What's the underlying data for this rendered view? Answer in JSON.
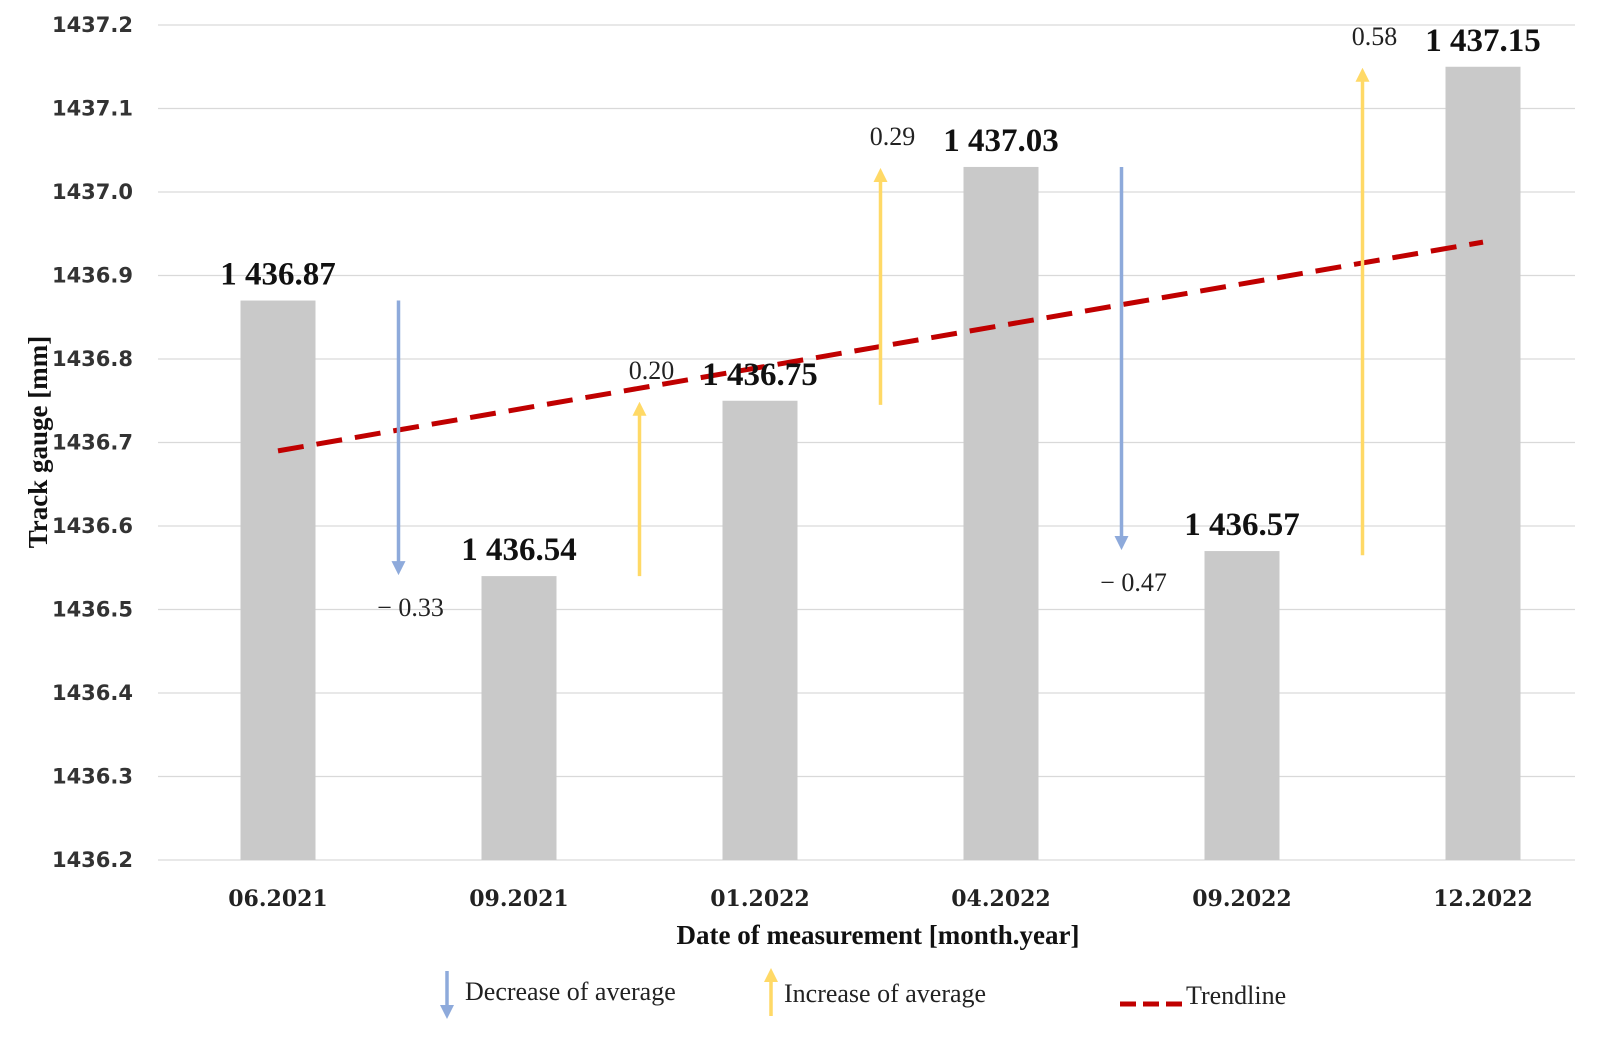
{
  "chart_data": {
    "type": "bar",
    "title": "",
    "xlabel": "Date of measurement [month.year]",
    "ylabel": "Track gauge [mm]",
    "ylim": [
      1436.2,
      1437.2
    ],
    "grid": true,
    "yticks": [
      "1437.2",
      "1437.1",
      "1437.0",
      "1436.9",
      "1436.8",
      "1436.7",
      "1436.6",
      "1436.5",
      "1436.4",
      "1436.3",
      "1436.2"
    ],
    "ytick_values": [
      1437.2,
      1437.1,
      1437.0,
      1436.9,
      1436.8,
      1436.7,
      1436.6,
      1436.5,
      1436.4,
      1436.3,
      1436.2
    ],
    "categories": [
      "06.2021",
      "09.2021",
      "01.2022",
      "04.2022",
      "09.2022",
      "12.2022"
    ],
    "values": [
      1436.87,
      1436.54,
      1436.75,
      1437.03,
      1436.57,
      1437.15
    ],
    "value_labels": [
      "1 436.87",
      "1 436.54",
      "1 436.75",
      "1 437.03",
      "1 436.57",
      "1 437.15"
    ],
    "changes": [
      {
        "between": [
          0,
          1
        ],
        "label": "− 0.33",
        "direction": "decrease",
        "from": 1436.87,
        "to": 1436.54
      },
      {
        "between": [
          1,
          2
        ],
        "label": "0.20",
        "direction": "increase",
        "from": 1436.54,
        "to": 1436.75
      },
      {
        "between": [
          2,
          3
        ],
        "label": "0.29",
        "direction": "increase",
        "from": 1436.745,
        "to": 1437.03
      },
      {
        "between": [
          3,
          4
        ],
        "label": "− 0.47",
        "direction": "decrease",
        "from": 1437.03,
        "to": 1436.57
      },
      {
        "between": [
          4,
          5
        ],
        "label": "0.58",
        "direction": "increase",
        "from": 1436.565,
        "to": 1437.15
      }
    ],
    "trendline": {
      "start": {
        "category_index": 0,
        "value": 1436.69
      },
      "end": {
        "category_index": 5,
        "value": 1436.94
      }
    },
    "legend": {
      "placement": "bottom",
      "items": [
        {
          "name": "Decrease of average",
          "symbol": "arrow-down"
        },
        {
          "name": "Increase of average",
          "symbol": "arrow-up"
        },
        {
          "name": "Trendline",
          "symbol": "dashed-line"
        }
      ]
    },
    "colors": {
      "bar": "#c9c9c9",
      "decrease": "#8eaadb",
      "increase": "#ffd966",
      "trendline": "#c00000",
      "grid": "#d9d9d9"
    }
  }
}
